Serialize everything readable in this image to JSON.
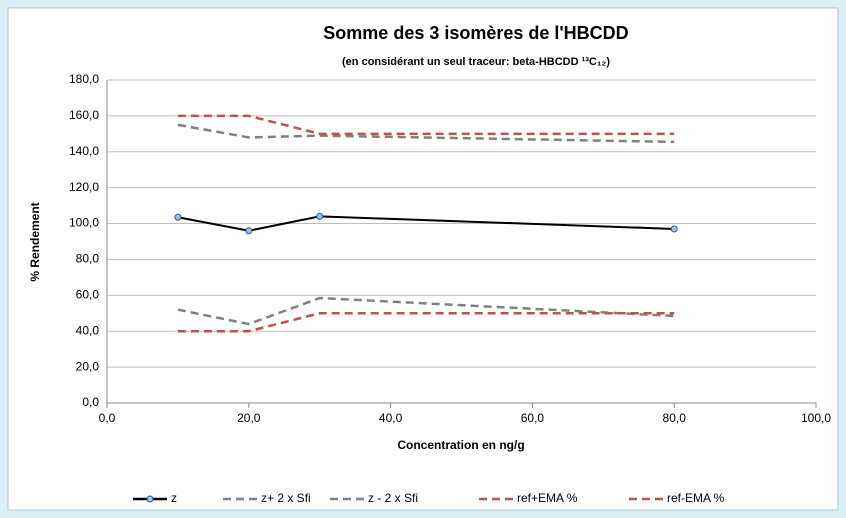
{
  "chart_data": {
    "type": "line",
    "title": "Somme des 3 isomères de l'HBCDD",
    "subtitle": "(en considérant un seul traceur: beta-HBCDD ¹³C₁₂)",
    "x_label": "Concentration en ng/g",
    "y_label": "% Rendement",
    "x": [
      10,
      20,
      30,
      80
    ],
    "xlim": [
      0,
      100
    ],
    "xticks": [
      {
        "value": 0,
        "label": "0,0"
      },
      {
        "value": 20,
        "label": "20,0"
      },
      {
        "value": 40,
        "label": "40,0"
      },
      {
        "value": 60,
        "label": "60,0"
      },
      {
        "value": 80,
        "label": "80,0"
      },
      {
        "value": 100,
        "label": "100,0"
      }
    ],
    "ylim": [
      0,
      180
    ],
    "yticks": [
      {
        "value": 0,
        "label": "0,0"
      },
      {
        "value": 20,
        "label": "20,0"
      },
      {
        "value": 40,
        "label": "40,0"
      },
      {
        "value": 60,
        "label": "60,0"
      },
      {
        "value": 80,
        "label": "80,0"
      },
      {
        "value": 100,
        "label": "100,0"
      },
      {
        "value": 120,
        "label": "120,0"
      },
      {
        "value": 140,
        "label": "140,0"
      },
      {
        "value": 160,
        "label": "160,0"
      },
      {
        "value": 180,
        "label": "180,0"
      }
    ],
    "grid": true,
    "legend": "bottom",
    "series": [
      {
        "name": "z",
        "color": "#000000",
        "dash": "solid",
        "marker": true,
        "values": [
          103.5,
          96,
          104,
          97
        ]
      },
      {
        "name": "z+ 2 x Sfi",
        "color": "#808080",
        "dash": "dashed",
        "marker": false,
        "values": [
          155,
          148,
          149,
          145.5
        ]
      },
      {
        "name": "z - 2 x Sfi",
        "color": "#808080",
        "dash": "dashed",
        "marker": false,
        "values": [
          52,
          44,
          58.5,
          48.5
        ]
      },
      {
        "name": "ref+EMA %",
        "color": "#c0504d",
        "dash": "dashed",
        "marker": false,
        "values": [
          160,
          160,
          150,
          150
        ]
      },
      {
        "name": "ref-EMA %",
        "color": "#c0504d",
        "dash": "dashed",
        "marker": false,
        "values": [
          40,
          40,
          50,
          50
        ]
      }
    ]
  }
}
